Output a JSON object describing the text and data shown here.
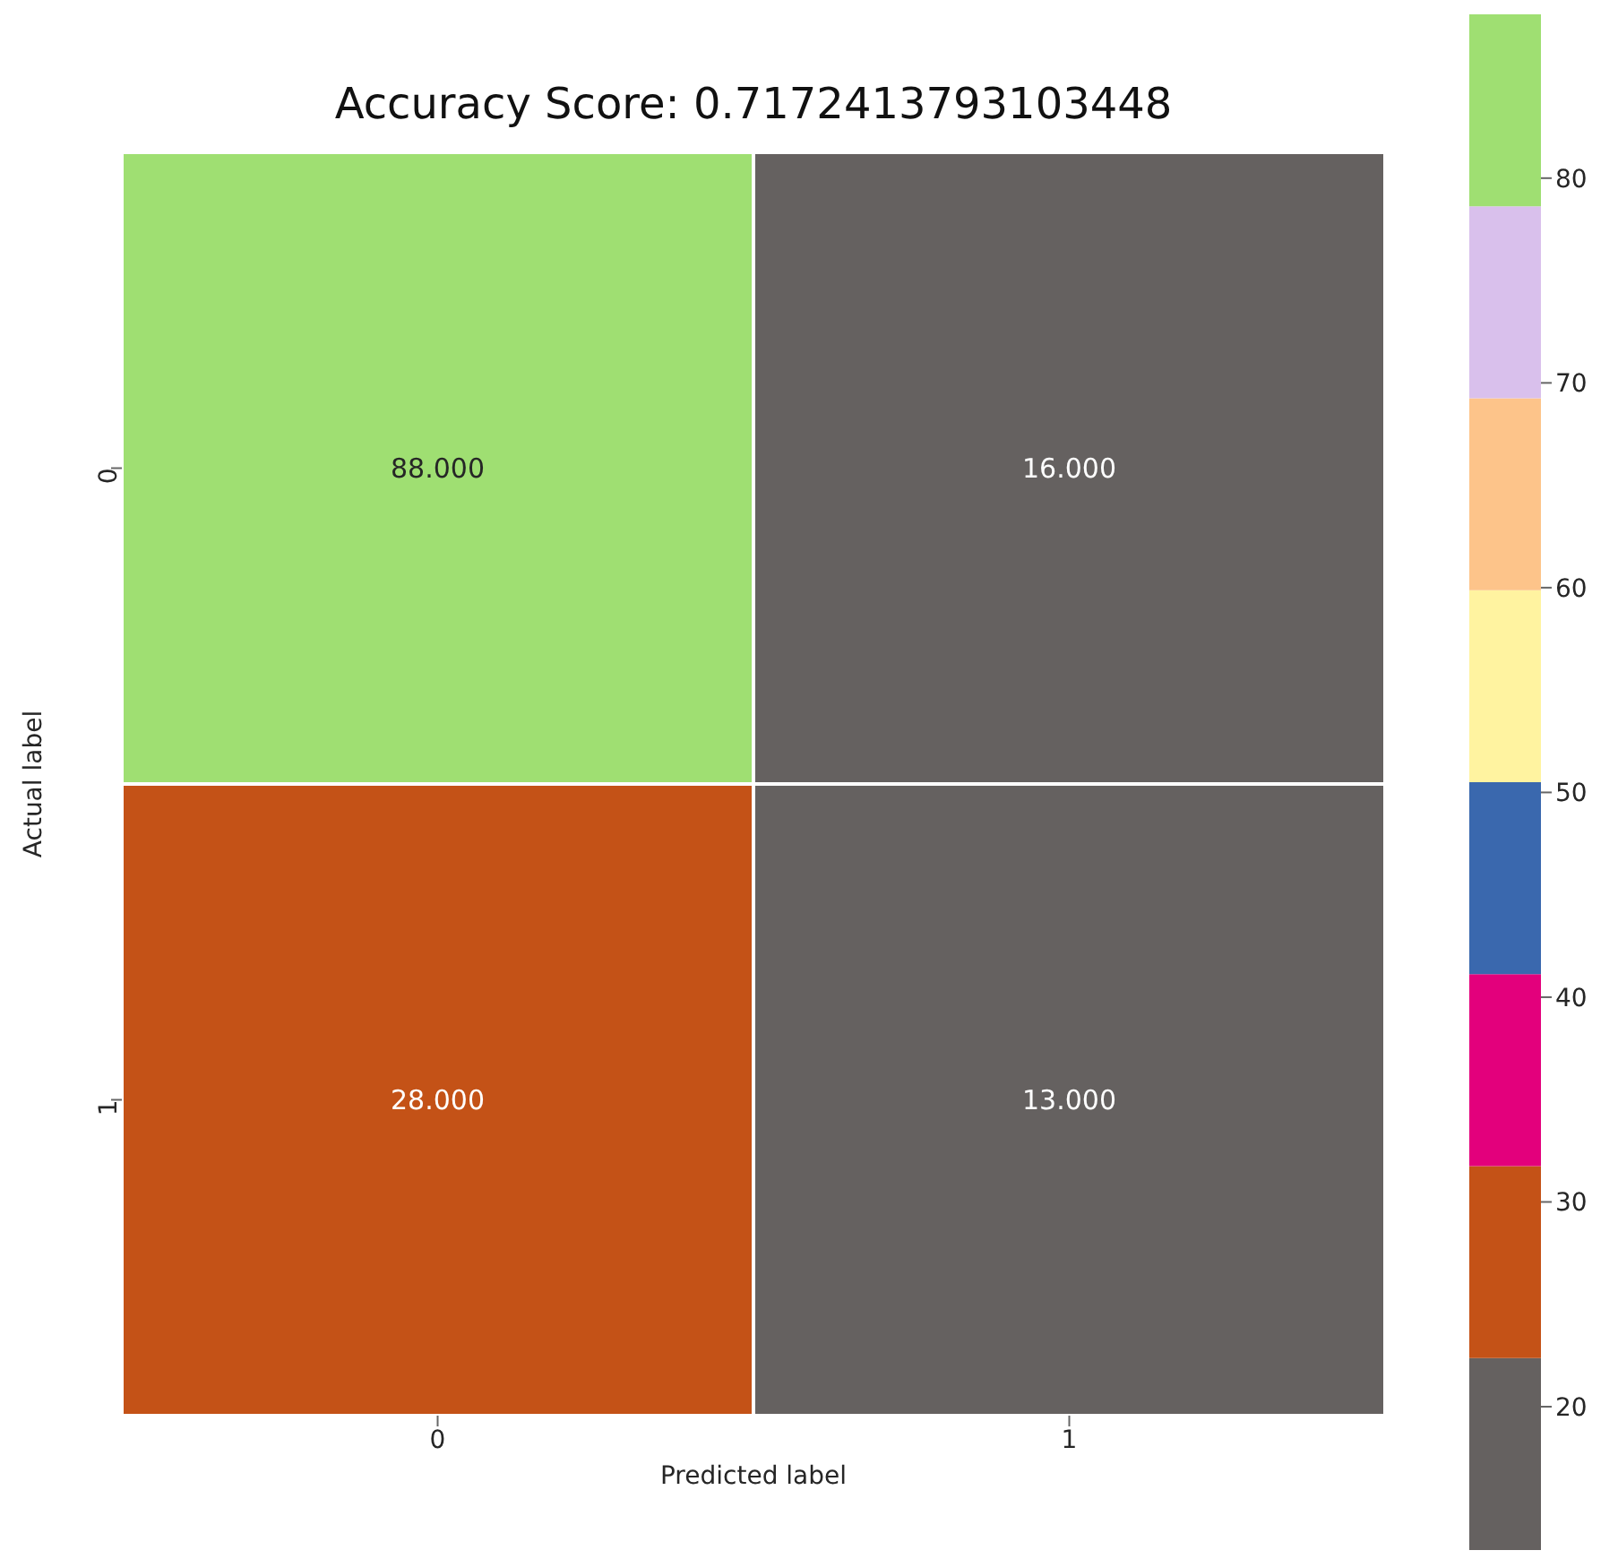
{
  "chart_data": {
    "type": "heatmap",
    "title": "Accuracy Score: 0.7172413793103448",
    "xlabel": "Predicted label",
    "ylabel": "Actual label",
    "categories": [
      "0",
      "1"
    ],
    "y_categories": [
      "0",
      "1"
    ],
    "cells": [
      [
        88,
        16
      ],
      [
        28,
        13
      ]
    ],
    "cell_labels": [
      [
        "88.000",
        "16.000"
      ],
      [
        "28.000",
        "13.000"
      ]
    ],
    "clim": [
      13,
      88
    ],
    "cticks": [
      20,
      30,
      40,
      50,
      60,
      70,
      80
    ]
  }
}
